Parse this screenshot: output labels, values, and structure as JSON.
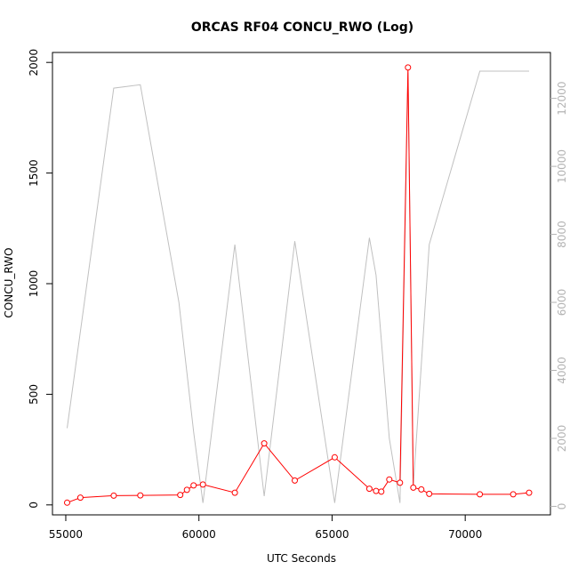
{
  "chart_data": {
    "type": "line",
    "title": "ORCAS RF04 CONCU_RWO (Log)",
    "xlabel": "UTC Seconds",
    "ylabel": "CONCU_RWO",
    "xlim": [
      54500,
      73200
    ],
    "ylim": [
      -45,
      2045
    ],
    "y2lim": [
      -250,
      13350
    ],
    "x_ticks": [
      55000,
      60000,
      65000,
      70000
    ],
    "y_ticks": [
      0,
      500,
      1000,
      1500,
      2000
    ],
    "y2_ticks": [
      0,
      2000,
      4000,
      6000,
      8000,
      10000,
      12000
    ],
    "series": [
      {
        "axis": "left",
        "color": "#ff0000",
        "style": "line+open-circles",
        "x": [
          55050,
          55550,
          56800,
          57800,
          59300,
          59550,
          59800,
          60150,
          61350,
          62450,
          63600,
          65100,
          66400,
          66650,
          66850,
          67150,
          67550,
          67850,
          68050,
          68350,
          68650,
          70550,
          71800,
          72400
        ],
        "y": [
          10,
          33,
          42,
          43,
          45,
          68,
          88,
          92,
          55,
          278,
          110,
          215,
          73,
          63,
          60,
          115,
          100,
          1977,
          78,
          70,
          50,
          48,
          48,
          55
        ]
      },
      {
        "axis": "right",
        "color": "#c0c0c0",
        "style": "line",
        "x": [
          55050,
          56800,
          57800,
          59250,
          59800,
          60150,
          61350,
          62450,
          63600,
          65100,
          66400,
          66650,
          67150,
          67550,
          67850,
          68050,
          68650,
          70550,
          72400
        ],
        "y": [
          2300,
          12300,
          12400,
          6000,
          2200,
          100,
          7700,
          300,
          7800,
          100,
          7900,
          6800,
          2000,
          100,
          12750,
          600,
          7700,
          12800,
          12800
        ]
      }
    ]
  }
}
